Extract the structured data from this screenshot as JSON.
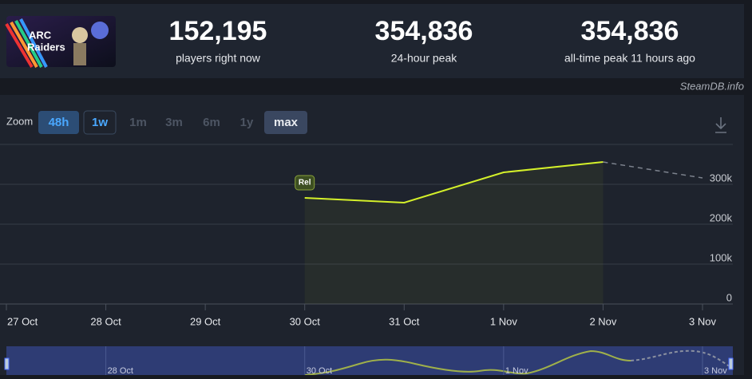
{
  "header": {
    "logo": [
      "ARC",
      "Raiders"
    ],
    "stats": [
      {
        "value": "152,195",
        "label": "players right now"
      },
      {
        "value": "354,836",
        "label": "24-hour peak"
      },
      {
        "value": "354,836",
        "label": "all-time peak 11 hours ago"
      }
    ]
  },
  "watermark": "SteamDB.info",
  "zoom": {
    "label": "Zoom",
    "buttons": [
      "48h",
      "1w",
      "1m",
      "3m",
      "6m",
      "1y",
      "max"
    ]
  },
  "chart_data": {
    "type": "line",
    "color": "#d4f02a",
    "categories": [
      "27 Oct",
      "28 Oct",
      "29 Oct",
      "30 Oct",
      "31 Oct",
      "1 Nov",
      "2 Nov",
      "3 Nov"
    ],
    "values": [
      null,
      null,
      null,
      266000,
      254000,
      330000,
      356000,
      316000
    ],
    "dashed_last_segment": true,
    "annotation": {
      "text": "Rel",
      "category": 3
    },
    "ylim": [
      0,
      400000
    ],
    "yticks": [
      0,
      {
        "value": 100000,
        "label": "100k"
      },
      {
        "value": 200000,
        "label": "200k"
      },
      {
        "value": 300000,
        "label": "300k"
      }
    ],
    "grid": true,
    "navigator_labels": [
      "28 Oct",
      "30 Oct",
      "1 Nov",
      "3 Nov"
    ]
  }
}
